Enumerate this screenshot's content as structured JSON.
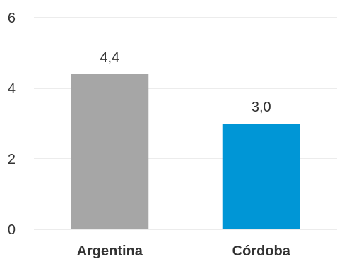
{
  "chart_data": {
    "type": "bar",
    "title": "",
    "xlabel": "",
    "ylabel": "",
    "categories": [
      "Argentina",
      "Córdoba"
    ],
    "values": [
      4.4,
      3.0
    ],
    "value_labels": [
      "4,4",
      "3,0"
    ],
    "bar_colors": [
      "#a6a6a6",
      "#0096d6"
    ],
    "ylim": [
      0,
      6
    ],
    "yticks": [
      0,
      2,
      4,
      6
    ],
    "ytick_labels": [
      "0",
      "2",
      "4",
      "6"
    ],
    "grid": true,
    "legend": "none"
  }
}
